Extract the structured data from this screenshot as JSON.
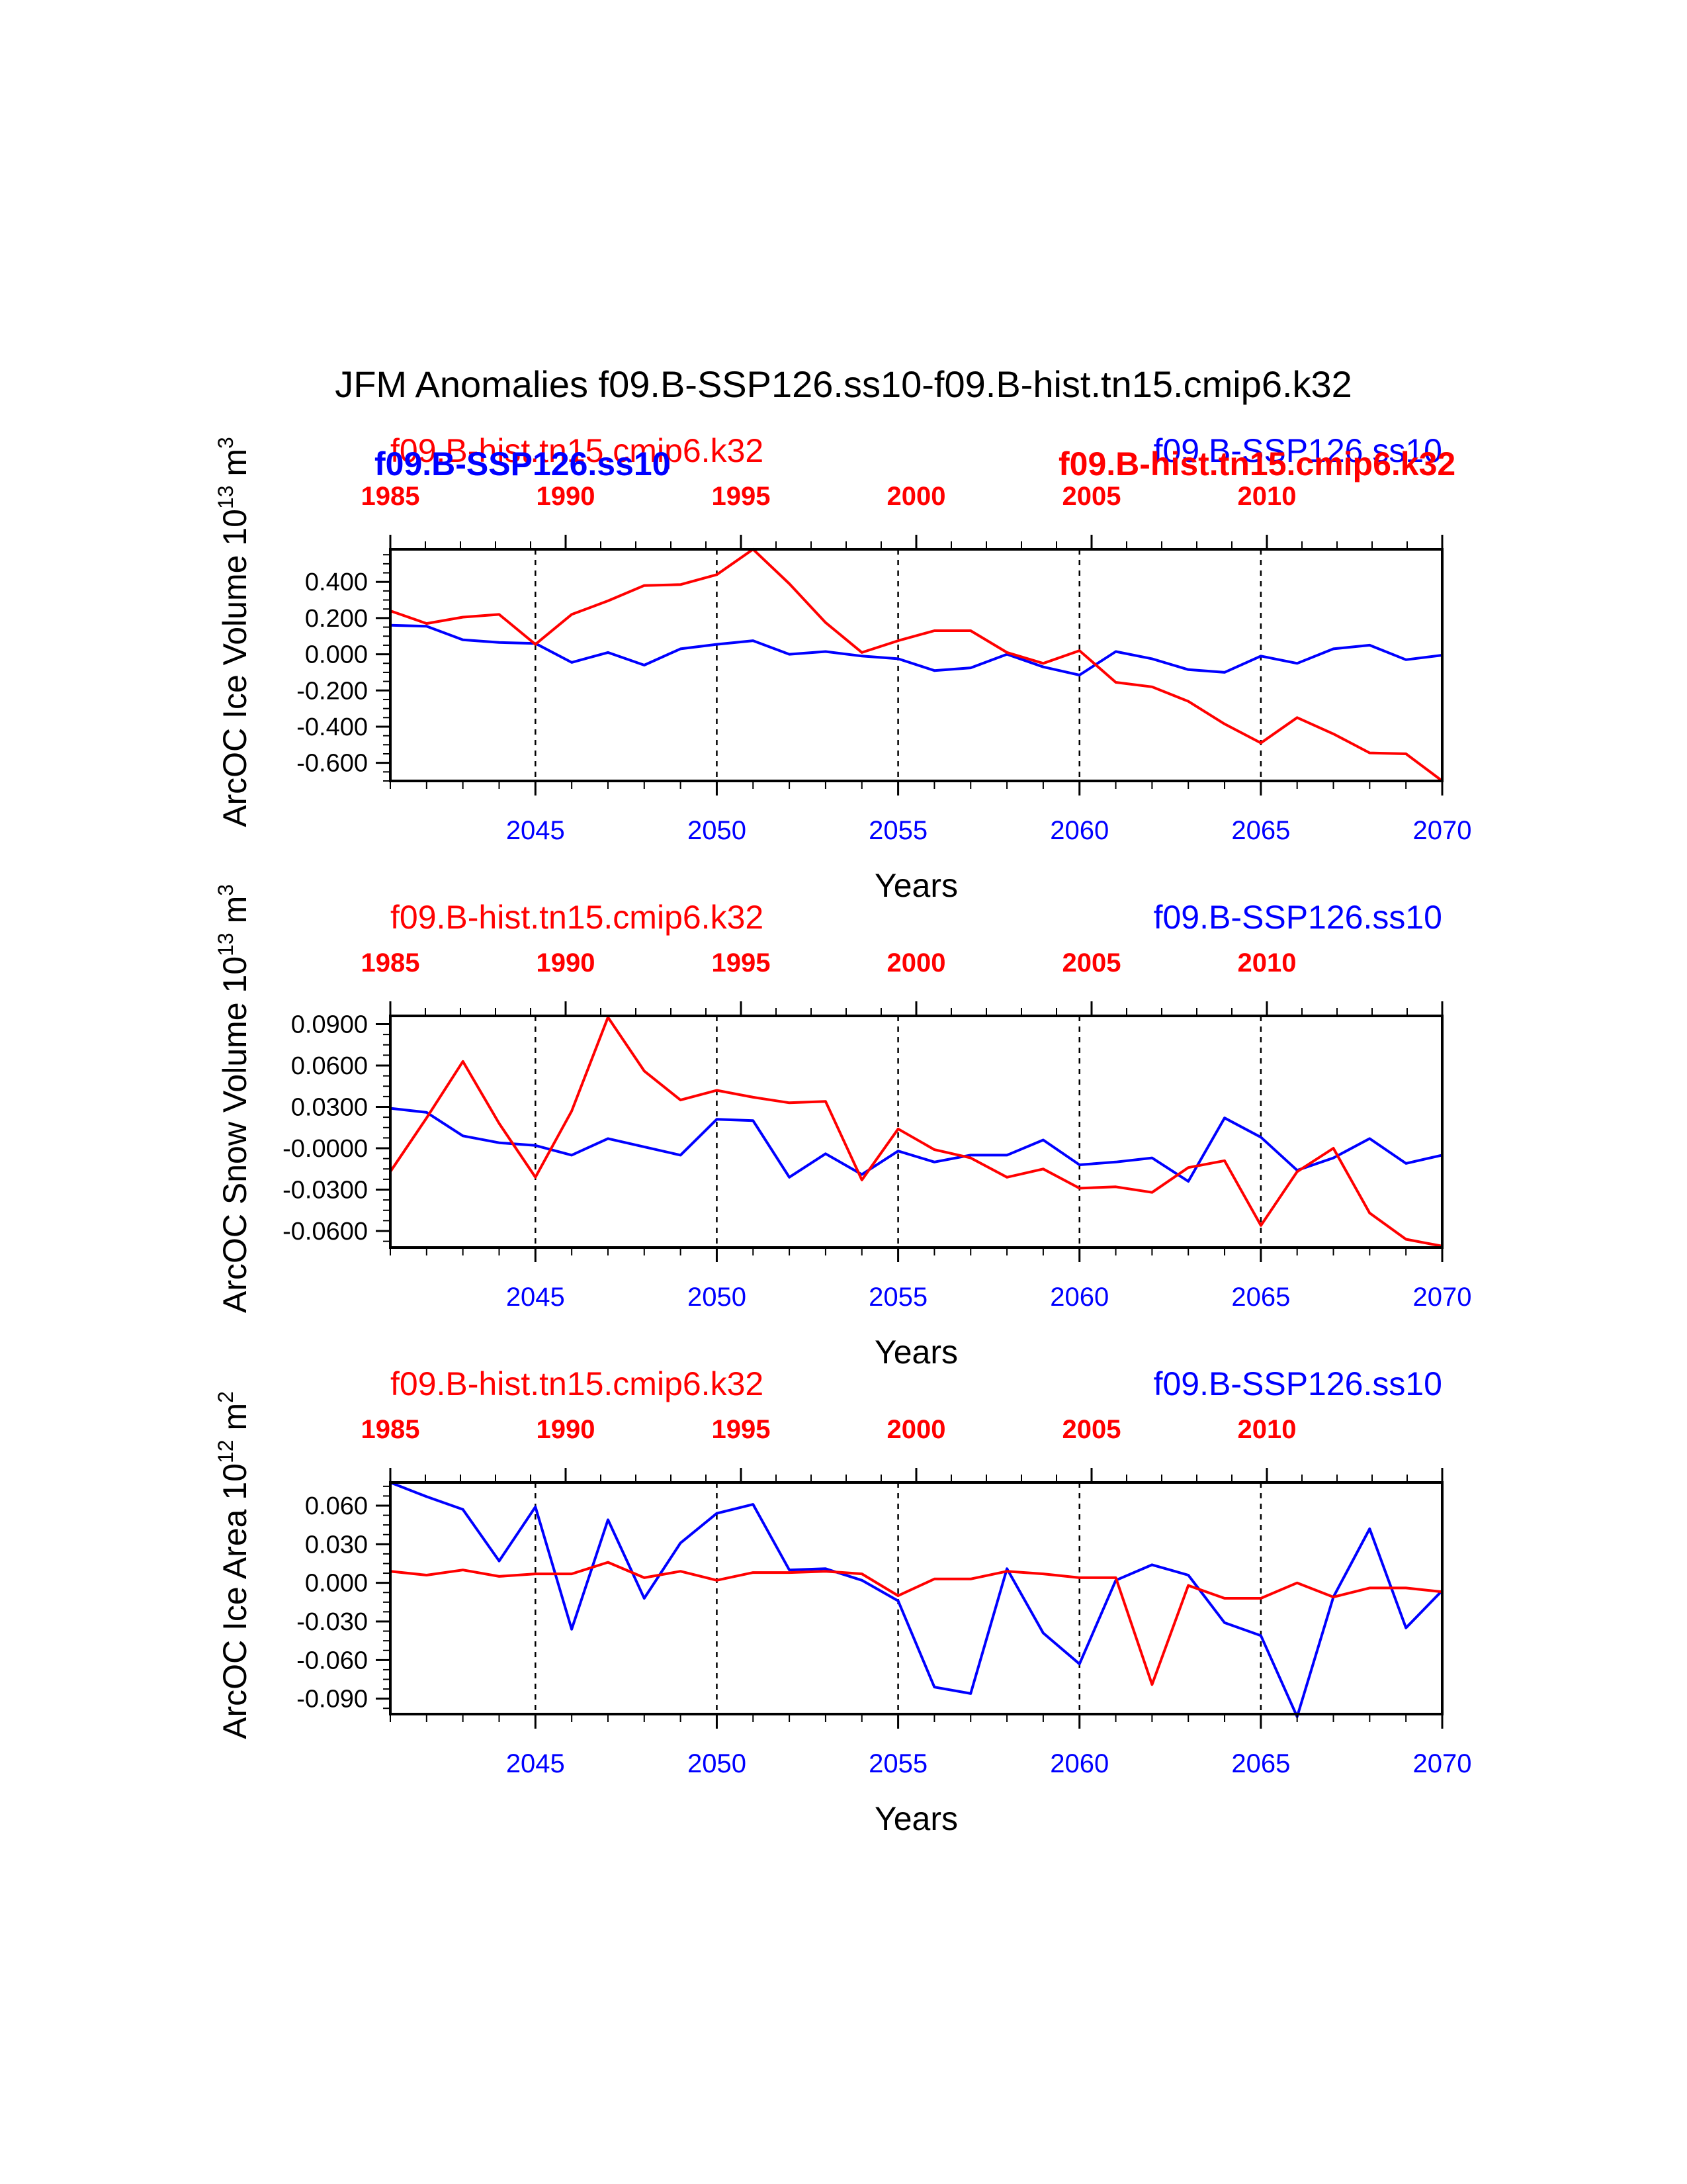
{
  "figure_title": "JFM Anomalies f09.B-SSP126.ss10-f09.B-hist.tn15.cmip6.k32",
  "colors": {
    "series_a": "#0000ff",
    "series_b": "#ff0000",
    "axis": "#000000"
  },
  "chart_data": [
    {
      "type": "line",
      "ylabel": "ArcOC Ice Volume 10",
      "ylabel_exp": "13",
      "ylabel_unit": " m",
      "ylabel_unit_exp": "3",
      "xlabel": "Years",
      "ylim": [
        -0.7,
        0.58
      ],
      "yticks": [
        -0.6,
        -0.4,
        -0.2,
        0.0,
        0.2,
        0.4
      ],
      "ytick_labels": [
        "-0.600",
        "-0.400",
        "-0.200",
        "0.000",
        "0.200",
        "0.400"
      ],
      "xlim": [
        2041,
        2070
      ],
      "bottom_ticks": [
        2045,
        2050,
        2055,
        2060,
        2065,
        2070
      ],
      "top_ticks": [
        "1985",
        "1990",
        "1995",
        "2000",
        "2005",
        "2010"
      ],
      "case_labels": {
        "left_red": "f09.B-hist.tn15.cmip6.k32",
        "left_blue": "f09.B-SSP126.ss10",
        "right_blue": "f09.B-SSP126.ss10",
        "right_red": "f09.B-hist.tn15.cmip6.k32"
      },
      "x": [
        2041,
        2042,
        2043,
        2044,
        2045,
        2046,
        2047,
        2048,
        2049,
        2050,
        2051,
        2052,
        2053,
        2054,
        2055,
        2056,
        2057,
        2058,
        2059,
        2060,
        2061,
        2062,
        2063,
        2064,
        2065,
        2066,
        2067,
        2068,
        2069,
        2070
      ],
      "series": [
        {
          "values": [
            0.16,
            0.155,
            0.08,
            0.065,
            0.06,
            -0.045,
            0.01,
            -0.06,
            0.03,
            0.055,
            0.075,
            0.0,
            0.015,
            -0.01,
            -0.025,
            -0.09,
            -0.075,
            0.0,
            -0.07,
            -0.115,
            0.015,
            -0.025,
            -0.085,
            -0.1,
            -0.01,
            -0.05,
            0.03,
            0.05,
            -0.03,
            -0.005
          ]
        },
        {
          "values": [
            0.24,
            0.17,
            0.205,
            0.22,
            0.055,
            0.22,
            0.295,
            0.38,
            0.385,
            0.44,
            0.58,
            0.39,
            0.175,
            0.01,
            0.075,
            0.13,
            0.13,
            0.01,
            -0.05,
            0.02,
            -0.155,
            -0.18,
            -0.26,
            -0.385,
            -0.49,
            -0.35,
            -0.44,
            -0.545,
            -0.55,
            -0.7
          ]
        }
      ]
    },
    {
      "type": "line",
      "ylabel": "ArcOC Snow Volume 10",
      "ylabel_exp": "13",
      "ylabel_unit": " m",
      "ylabel_unit_exp": "3",
      "xlabel": "Years",
      "ylim": [
        -0.072,
        0.096
      ],
      "yticks": [
        -0.06,
        -0.03,
        0.0,
        0.03,
        0.06,
        0.09
      ],
      "ytick_labels": [
        "-0.0600",
        "-0.0300",
        "-0.0000",
        "0.0300",
        "0.0600",
        "0.0900"
      ],
      "xlim": [
        2041,
        2070
      ],
      "bottom_ticks": [
        2045,
        2050,
        2055,
        2060,
        2065,
        2070
      ],
      "top_ticks": [
        "1985",
        "1990",
        "1995",
        "2000",
        "2005",
        "2010"
      ],
      "case_labels": {
        "left_red": "f09.B-hist.tn15.cmip6.k32",
        "right_blue": "f09.B-SSP126.ss10"
      },
      "x": [
        2041,
        2042,
        2043,
        2044,
        2045,
        2046,
        2047,
        2048,
        2049,
        2050,
        2051,
        2052,
        2053,
        2054,
        2055,
        2056,
        2057,
        2058,
        2059,
        2060,
        2061,
        2062,
        2063,
        2064,
        2065,
        2066,
        2067,
        2068,
        2069,
        2070
      ],
      "series": [
        {
          "values": [
            0.029,
            0.026,
            0.009,
            0.004,
            0.002,
            -0.005,
            0.007,
            0.001,
            -0.005,
            0.021,
            0.02,
            -0.021,
            -0.004,
            -0.019,
            -0.002,
            -0.01,
            -0.005,
            -0.005,
            0.006,
            -0.012,
            -0.01,
            -0.007,
            -0.024,
            0.022,
            0.008,
            -0.016,
            -0.007,
            0.007,
            -0.011,
            -0.005
          ]
        },
        {
          "values": [
            -0.017,
            0.022,
            0.063,
            0.018,
            -0.021,
            0.027,
            0.095,
            0.056,
            0.035,
            0.042,
            0.037,
            0.033,
            0.034,
            -0.023,
            0.014,
            -0.001,
            -0.007,
            -0.021,
            -0.015,
            -0.029,
            -0.028,
            -0.032,
            -0.014,
            -0.009,
            -0.056,
            -0.017,
            0.0,
            -0.047,
            -0.066,
            -0.071
          ]
        }
      ]
    },
    {
      "type": "line",
      "ylabel": "ArcOC Ice Area 10",
      "ylabel_exp": "12",
      "ylabel_unit": " m",
      "ylabel_unit_exp": "2",
      "xlabel": "Years",
      "ylim": [
        -0.102,
        0.078
      ],
      "yticks": [
        -0.09,
        -0.06,
        -0.03,
        0.0,
        0.03,
        0.06
      ],
      "ytick_labels": [
        "-0.090",
        "-0.060",
        "-0.030",
        "0.000",
        "0.030",
        "0.060"
      ],
      "xlim": [
        2041,
        2070
      ],
      "bottom_ticks": [
        2045,
        2050,
        2055,
        2060,
        2065,
        2070
      ],
      "top_ticks": [
        "1985",
        "1990",
        "1995",
        "2000",
        "2005",
        "2010"
      ],
      "case_labels": {
        "left_red": "f09.B-hist.tn15.cmip6.k32",
        "right_blue": "f09.B-SSP126.ss10"
      },
      "x": [
        2041,
        2042,
        2043,
        2044,
        2045,
        2046,
        2047,
        2048,
        2049,
        2050,
        2051,
        2052,
        2053,
        2054,
        2055,
        2056,
        2057,
        2058,
        2059,
        2060,
        2061,
        2062,
        2063,
        2064,
        2065,
        2066,
        2067,
        2068,
        2069,
        2070
      ],
      "series": [
        {
          "values": [
            0.078,
            0.067,
            0.057,
            0.017,
            0.059,
            -0.036,
            0.049,
            -0.012,
            0.031,
            0.054,
            0.061,
            0.01,
            0.011,
            0.002,
            -0.014,
            -0.081,
            -0.086,
            0.011,
            -0.039,
            -0.063,
            0.002,
            0.014,
            0.006,
            -0.031,
            -0.041,
            -0.104,
            -0.011,
            0.042,
            -0.035,
            -0.006
          ]
        },
        {
          "values": [
            0.009,
            0.006,
            0.01,
            0.005,
            0.007,
            0.007,
            0.016,
            0.004,
            0.009,
            0.002,
            0.008,
            0.008,
            0.009,
            0.007,
            -0.01,
            0.003,
            0.003,
            0.009,
            0.007,
            0.004,
            0.004,
            -0.079,
            -0.002,
            -0.012,
            -0.012,
            0.0,
            -0.011,
            -0.004,
            -0.004,
            -0.007
          ]
        }
      ]
    }
  ]
}
